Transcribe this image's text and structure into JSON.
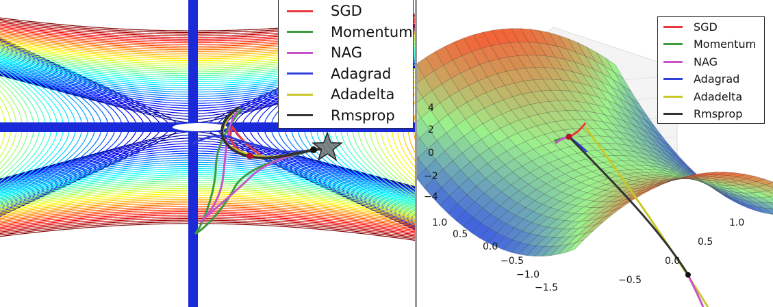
{
  "chart_data": [
    {
      "type": "line",
      "legend": {
        "placement": "upper-right"
      },
      "series": [
        {
          "name": "SGD",
          "color": "#e8383d"
        },
        {
          "name": "Momentum",
          "color": "#3d9a3d"
        },
        {
          "name": "NAG",
          "color": "#c853c8"
        },
        {
          "name": "Adagrad",
          "color": "#3040d8"
        },
        {
          "name": "Adadelta",
          "color": "#c8c828"
        },
        {
          "name": "Rmsprop",
          "color": "#333333"
        }
      ],
      "markers": [
        "start-dot",
        "goal-star"
      ]
    },
    {
      "type": "surface",
      "legend": {
        "placement": "upper-right"
      },
      "zticks": [
        "4",
        "2",
        "0",
        "−2",
        "−4"
      ],
      "yticks": [
        "1.0",
        "0.5",
        "0.0",
        "−0.5",
        "−1.0",
        "−1.5"
      ],
      "xticks": [
        "1.0",
        "0.5",
        "0.0",
        "−0.5"
      ],
      "series": [
        {
          "name": "SGD",
          "color": "#e8383d"
        },
        {
          "name": "Momentum",
          "color": "#3d9a3d"
        },
        {
          "name": "NAG",
          "color": "#c853c8"
        },
        {
          "name": "Adagrad",
          "color": "#3040d8"
        },
        {
          "name": "Adadelta",
          "color": "#c8c828"
        },
        {
          "name": "Rmsprop",
          "color": "#333333"
        }
      ]
    }
  ]
}
